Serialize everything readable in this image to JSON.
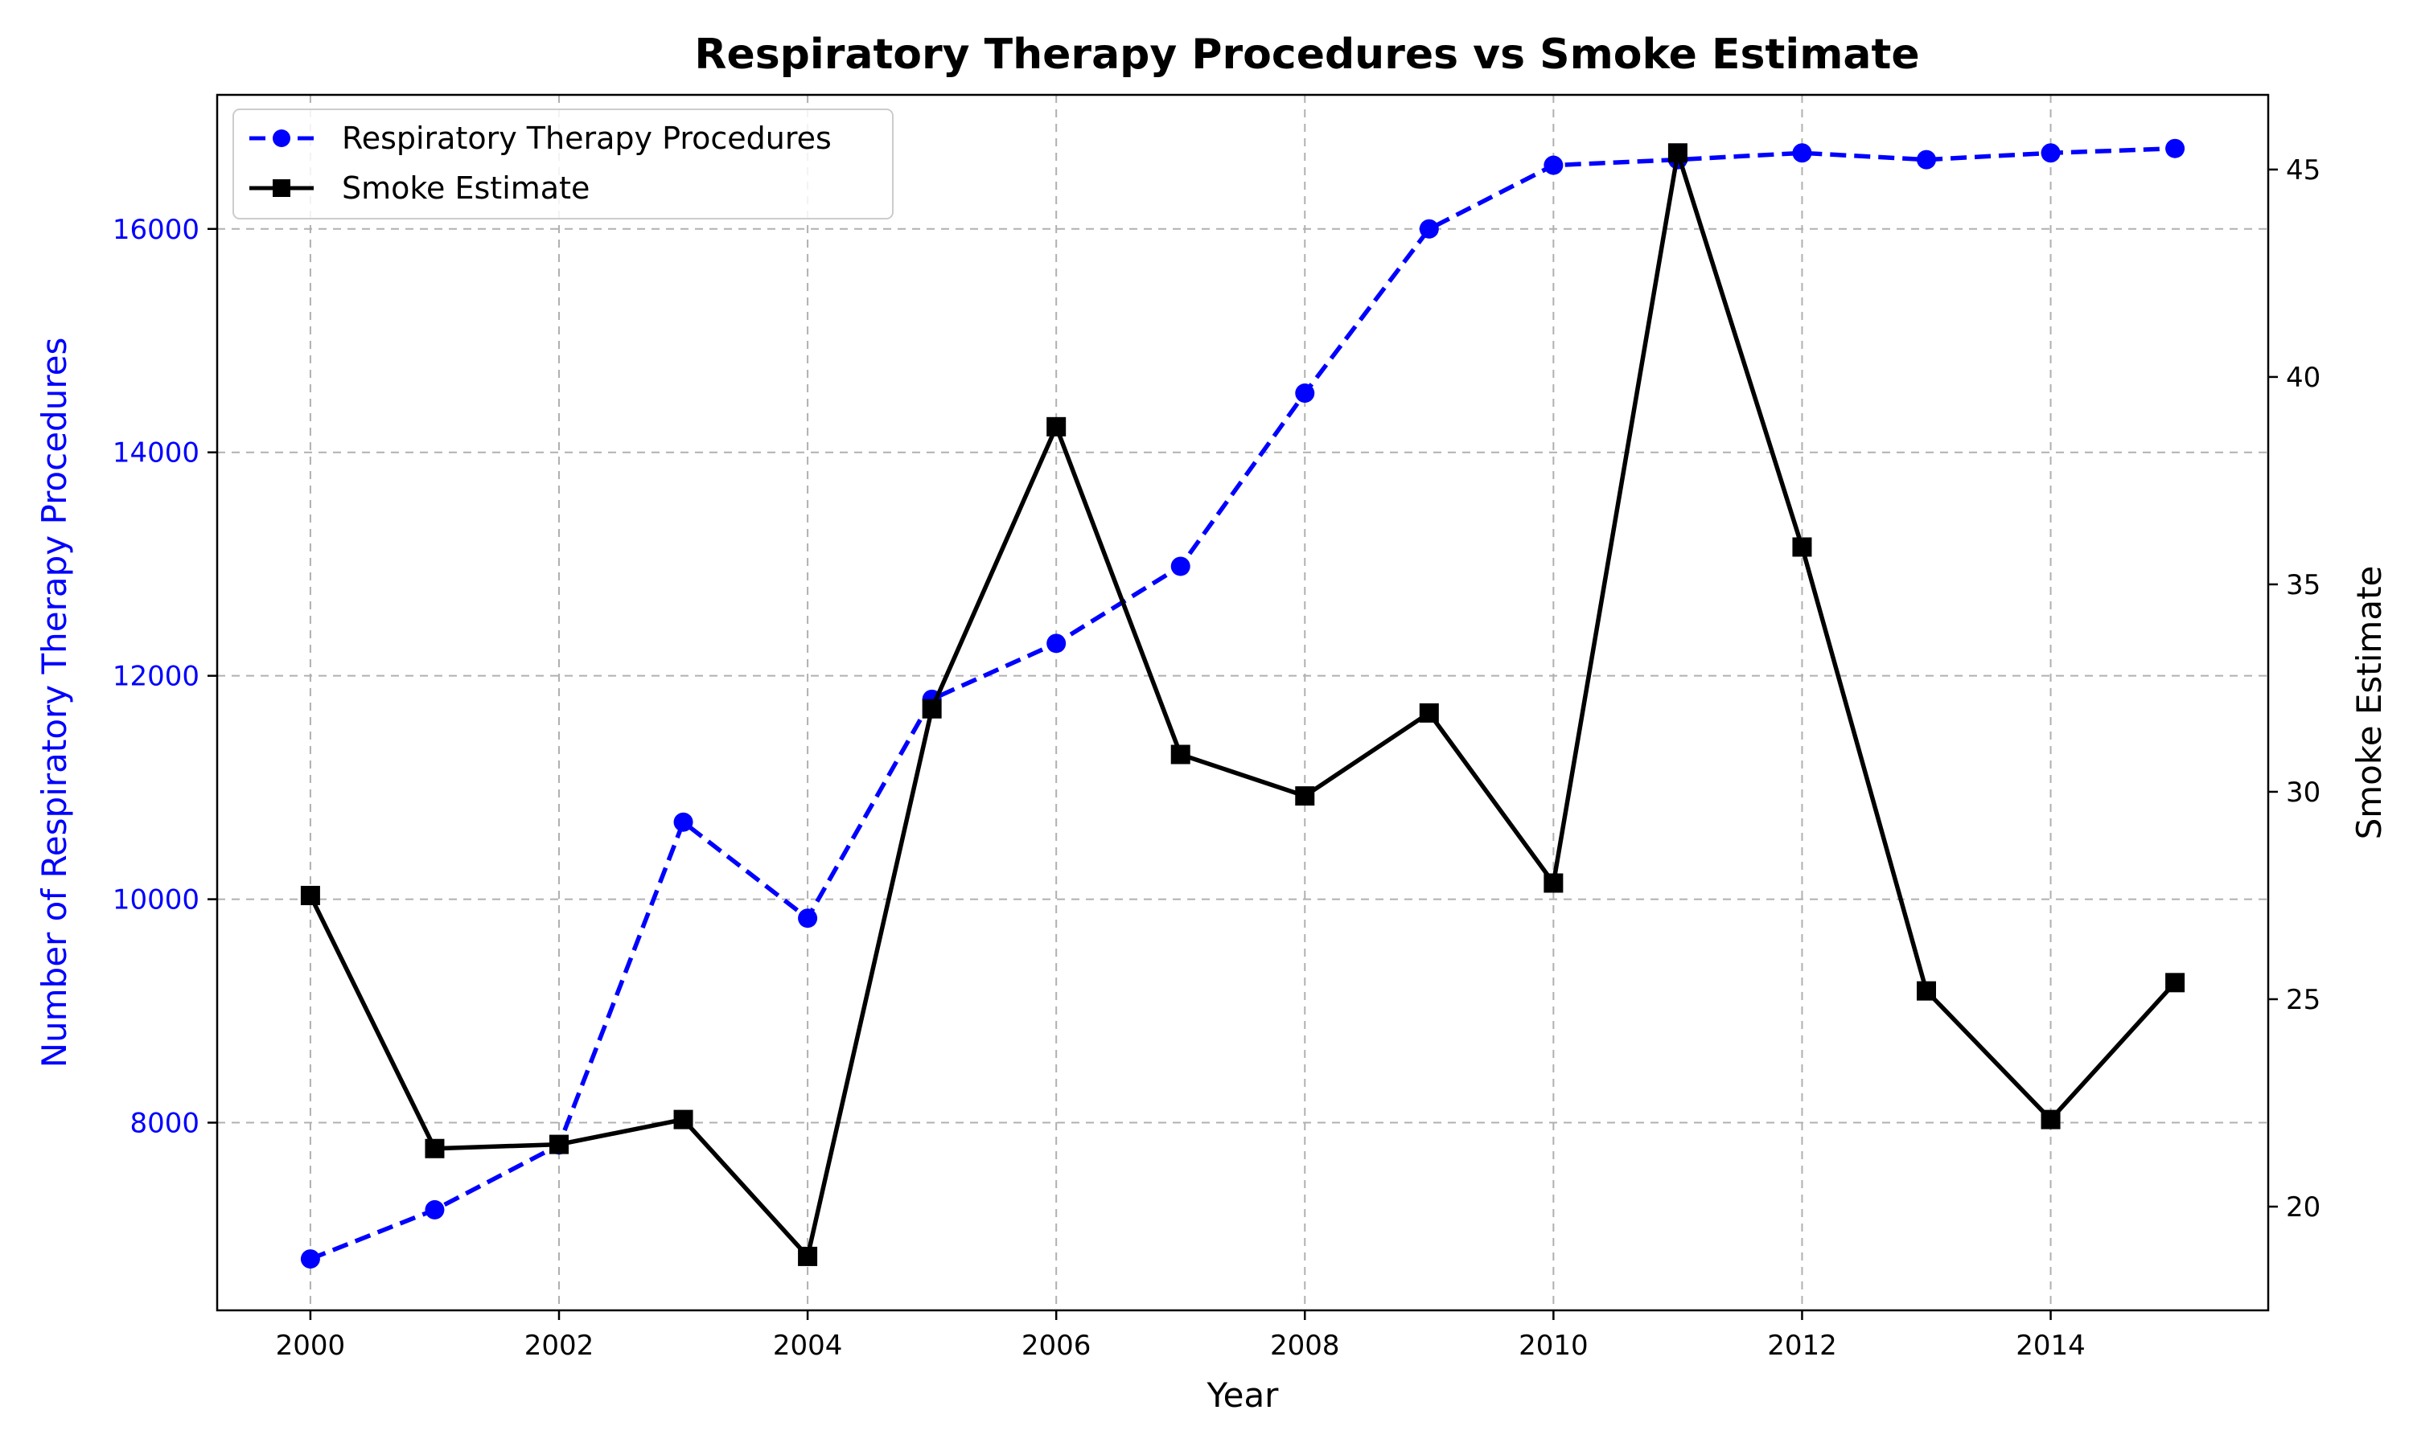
{
  "chart_data": {
    "type": "line",
    "title": "Respiratory Therapy Procedures vs Smoke Estimate",
    "xlabel": "Year",
    "ylabel_left": "Number of Respiratory Therapy Procedures",
    "ylabel_right": "Smoke Estimate",
    "x": [
      2000,
      2001,
      2002,
      2003,
      2004,
      2005,
      2006,
      2007,
      2008,
      2009,
      2010,
      2011,
      2012,
      2013,
      2014,
      2015
    ],
    "xlim": [
      1999.25,
      2015.75
    ],
    "x_ticks": [
      2000,
      2002,
      2004,
      2006,
      2008,
      2010,
      2012,
      2014
    ],
    "ylim_left": [
      6320,
      17200
    ],
    "y_ticks_left": [
      8000,
      10000,
      12000,
      14000,
      16000
    ],
    "ylim_right": [
      17.5,
      46.8
    ],
    "y_ticks_right": [
      20,
      25,
      30,
      35,
      40,
      45
    ],
    "grid": true,
    "legend_position": "upper-left",
    "series": [
      {
        "name": "Respiratory Therapy Procedures",
        "axis": "left",
        "color": "#0000ff",
        "line_style": "dashed",
        "marker": "circle",
        "values": [
          6780,
          7220,
          7800,
          10690,
          9830,
          11790,
          12290,
          12980,
          14530,
          16000,
          16570,
          16620,
          16680,
          16620,
          16680,
          16720
        ]
      },
      {
        "name": "Smoke Estimate",
        "axis": "right",
        "color": "#000000",
        "line_style": "solid",
        "marker": "square",
        "values": [
          27.5,
          21.4,
          21.5,
          22.1,
          18.8,
          32.0,
          38.8,
          30.9,
          29.9,
          31.9,
          27.8,
          45.4,
          35.9,
          25.2,
          22.1,
          25.4
        ]
      }
    ],
    "colors": {
      "left_axis_text": "#0000ff",
      "grid": "#b0b0b0"
    }
  }
}
